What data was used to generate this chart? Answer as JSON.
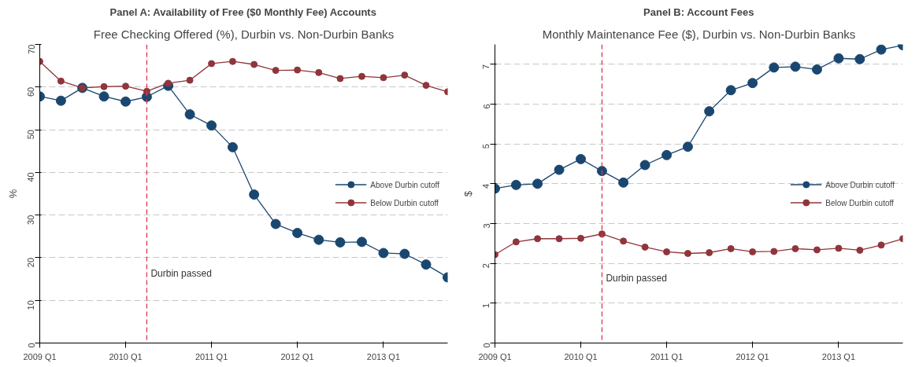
{
  "chart_data": [
    {
      "type": "line",
      "title": "Panel A: Availability of Free ($0 Monthly Fee) Accounts",
      "subtitle": "Free Checking Offered (%), Durbin vs. Non-Durbin Banks",
      "ylabel": "%",
      "x": [
        "2009-01",
        "2009-04",
        "2009-07",
        "2009-10",
        "2010-01",
        "2010-04",
        "2010-07",
        "2010-10",
        "2011-01",
        "2011-04",
        "2011-07",
        "2011-10",
        "2012-01",
        "2012-04",
        "2012-07",
        "2012-10",
        "2013-01",
        "2013-04",
        "2013-07",
        "2013-10"
      ],
      "xlim": [
        "2009-01",
        "2013-10"
      ],
      "xticks": [
        {
          "value": "2009-01",
          "label": "2009 Q1"
        },
        {
          "value": "2010-01",
          "label": "2010 Q1"
        },
        {
          "value": "2011-01",
          "label": "2011 Q1"
        },
        {
          "value": "2012-01",
          "label": "2012 Q1"
        },
        {
          "value": "2013-01",
          "label": "2013 Q1"
        }
      ],
      "ylim": [
        0,
        70
      ],
      "yticks": [
        0,
        10,
        20,
        30,
        40,
        50,
        60,
        70
      ],
      "grid": "y",
      "legend": "right",
      "marker": "circle",
      "line_style": "solid",
      "series": [
        {
          "name": "Above Durbin cutoff",
          "color": "#1a476f",
          "values": [
            57.8,
            56.8,
            59.8,
            57.8,
            56.6,
            57.7,
            60.3,
            53.6,
            51.0,
            45.9,
            34.8,
            27.9,
            25.8,
            24.2,
            23.6,
            23.7,
            21.1,
            20.9,
            18.4,
            15.4
          ]
        },
        {
          "name": "Below Durbin cutoff",
          "color": "#90353b",
          "values": [
            66.0,
            61.4,
            59.8,
            60.1,
            60.2,
            59.0,
            60.9,
            61.6,
            65.5,
            66.0,
            65.3,
            63.9,
            64.0,
            63.4,
            62.0,
            62.5,
            62.2,
            62.8,
            60.4,
            58.9
          ]
        }
      ],
      "ref_lines": [
        {
          "axis": "x",
          "value": "2010-04",
          "color": "#e0334f",
          "line_style": "dashed"
        }
      ],
      "annotations": [
        {
          "text": "Durbin passed",
          "x": "2010-04",
          "y": 15
        }
      ]
    },
    {
      "type": "line",
      "title": "Panel B: Account Fees",
      "subtitle": "Monthly Maintenance Fee ($), Durbin vs. Non-Durbin Banks",
      "ylabel": "$",
      "x": [
        "2009-01",
        "2009-04",
        "2009-07",
        "2009-10",
        "2010-01",
        "2010-04",
        "2010-07",
        "2010-10",
        "2011-01",
        "2011-04",
        "2011-07",
        "2011-10",
        "2012-01",
        "2012-04",
        "2012-07",
        "2012-10",
        "2013-01",
        "2013-04",
        "2013-07",
        "2013-10"
      ],
      "xlim": [
        "2009-01",
        "2013-10"
      ],
      "xticks": [
        {
          "value": "2009-01",
          "label": "2009 Q1"
        },
        {
          "value": "2010-01",
          "label": "2010 Q1"
        },
        {
          "value": "2011-01",
          "label": "2011 Q1"
        },
        {
          "value": "2012-01",
          "label": "2012 Q1"
        },
        {
          "value": "2013-01",
          "label": "2013 Q1"
        }
      ],
      "ylim": [
        0,
        7.5
      ],
      "yticks": [
        0,
        1,
        2,
        3,
        4,
        5,
        6,
        7
      ],
      "grid": "y",
      "legend": "right",
      "marker": "circle",
      "line_style": "solid",
      "series": [
        {
          "name": "Above Durbin cutoff",
          "color": "#1a476f",
          "values": [
            3.88,
            3.97,
            4.0,
            4.35,
            4.62,
            4.32,
            4.03,
            4.47,
            4.72,
            4.93,
            5.82,
            6.35,
            6.53,
            6.92,
            6.94,
            6.87,
            7.15,
            7.13,
            7.37,
            7.48
          ]
        },
        {
          "name": "Below Durbin cutoff",
          "color": "#90353b",
          "values": [
            2.22,
            2.54,
            2.62,
            2.62,
            2.63,
            2.74,
            2.56,
            2.41,
            2.29,
            2.25,
            2.27,
            2.37,
            2.29,
            2.3,
            2.37,
            2.34,
            2.38,
            2.33,
            2.46,
            2.62
          ]
        }
      ],
      "ref_lines": [
        {
          "axis": "x",
          "value": "2010-04",
          "color": "#e0334f",
          "line_style": "dashed"
        }
      ],
      "annotations": [
        {
          "text": "Durbin passed",
          "x": "2010-04",
          "y": 1.5
        }
      ]
    }
  ]
}
